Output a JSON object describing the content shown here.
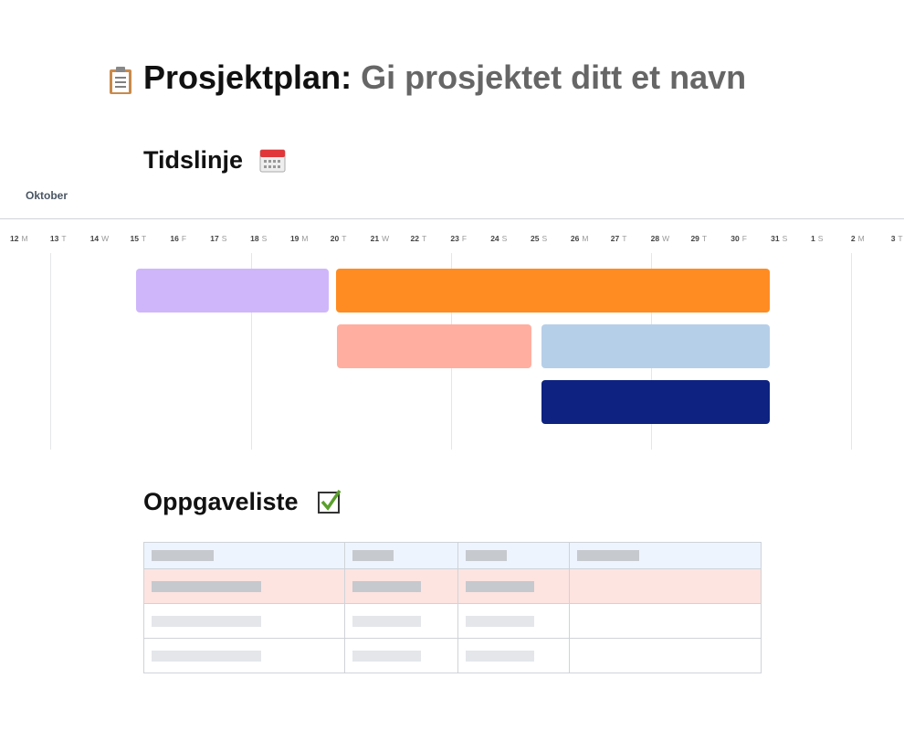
{
  "header": {
    "title": "Prosjektplan:",
    "subtitle": "Gi prosjektet ditt et navn"
  },
  "timeline": {
    "heading": "Tidslinje",
    "month": "Oktober",
    "days": [
      {
        "num": "12",
        "weekday": "M"
      },
      {
        "num": "13",
        "weekday": "T"
      },
      {
        "num": "14",
        "weekday": "W"
      },
      {
        "num": "15",
        "weekday": "T"
      },
      {
        "num": "16",
        "weekday": "F"
      },
      {
        "num": "17",
        "weekday": "S"
      },
      {
        "num": "18",
        "weekday": "S"
      },
      {
        "num": "19",
        "weekday": "M"
      },
      {
        "num": "20",
        "weekday": "T"
      },
      {
        "num": "21",
        "weekday": "W"
      },
      {
        "num": "22",
        "weekday": "T"
      },
      {
        "num": "23",
        "weekday": "F"
      },
      {
        "num": "24",
        "weekday": "S"
      },
      {
        "num": "25",
        "weekday": "S"
      },
      {
        "num": "26",
        "weekday": "M"
      },
      {
        "num": "27",
        "weekday": "T"
      },
      {
        "num": "28",
        "weekday": "W"
      },
      {
        "num": "29",
        "weekday": "T"
      },
      {
        "num": "30",
        "weekday": "F"
      },
      {
        "num": "31",
        "weekday": "S"
      },
      {
        "num": "1",
        "weekday": "S"
      },
      {
        "num": "2",
        "weekday": "M"
      },
      {
        "num": "3",
        "weekday": "T"
      }
    ]
  },
  "tasks": {
    "heading": "Oppgaveliste"
  }
}
